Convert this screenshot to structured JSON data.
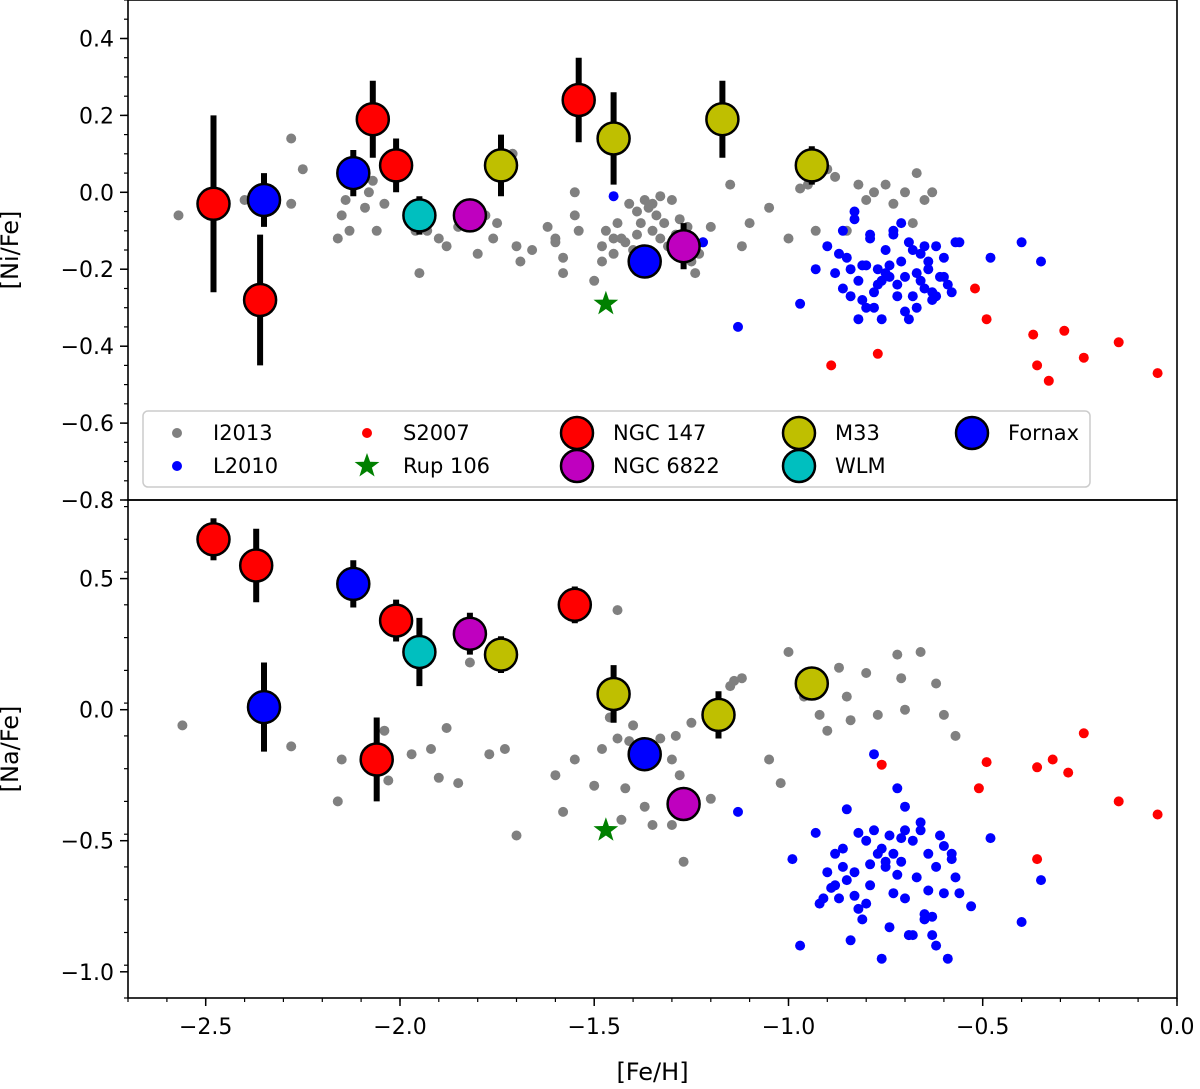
{
  "chart_data": [
    {
      "type": "scatter",
      "panel": "top",
      "xlabel": "",
      "ylabel": "[Ni/Fe]",
      "xlim": [
        -2.7,
        0.0
      ],
      "ylim": [
        -0.8,
        0.5
      ],
      "yticks": [
        0.4,
        0.2,
        0.0,
        -0.2,
        -0.4,
        -0.6,
        -0.8
      ],
      "ytick_labels": [
        "0.4",
        "0.2",
        "0.0",
        "−0.2",
        "−0.4",
        "−0.6",
        "−0.8"
      ],
      "legend": {
        "placement": "lower-center",
        "entries": [
          {
            "label": "I2013",
            "marker": "small-dot",
            "color": "#808080"
          },
          {
            "label": "L2010",
            "marker": "small-dot",
            "color": "#0000ff"
          },
          {
            "label": "S2007",
            "marker": "small-dot",
            "color": "#ff0000"
          },
          {
            "label": "Rup 106",
            "marker": "star",
            "color": "#008000"
          },
          {
            "label": "NGC 147",
            "marker": "large-circle",
            "color": "#ff0000"
          },
          {
            "label": "NGC 6822",
            "marker": "large-circle",
            "color": "#bf00bf"
          },
          {
            "label": "M33",
            "marker": "large-circle",
            "color": "#bfbf00"
          },
          {
            "label": "WLM",
            "marker": "large-circle",
            "color": "#00bfbf"
          },
          {
            "label": "Fornax",
            "marker": "large-circle",
            "color": "#0000ff"
          }
        ]
      },
      "series": [
        {
          "name": "I2013",
          "marker": "small-dot",
          "color": "#808080",
          "x": [
            -2.57,
            -2.4,
            -2.28,
            -2.25,
            -2.28,
            -2.16,
            -2.15,
            -2.14,
            -2.13,
            -2.09,
            -2.08,
            -2.07,
            -2.06,
            -2.04,
            -1.97,
            -1.96,
            -1.95,
            -1.93,
            -1.92,
            -1.9,
            -1.88,
            -1.85,
            -1.8,
            -1.78,
            -1.76,
            -1.75,
            -1.72,
            -1.71,
            -1.7,
            -1.69,
            -1.66,
            -1.6,
            -1.58,
            -1.55,
            -1.54,
            -1.5,
            -1.48,
            -1.47,
            -1.45,
            -1.44,
            -1.43,
            -1.42,
            -1.4,
            -1.39,
            -1.38,
            -1.37,
            -1.36,
            -1.35,
            -1.34,
            -1.33,
            -1.32,
            -1.31,
            -1.3,
            -1.29,
            -1.28,
            -1.27,
            -1.26,
            -1.25,
            -1.24,
            -1.23,
            -1.22,
            -1.15,
            -1.12,
            -1.1,
            -1.05,
            -1.0,
            -0.97,
            -0.95,
            -0.93,
            -0.9,
            -0.88,
            -0.85,
            -0.82,
            -0.8,
            -0.78,
            -0.75,
            -0.73,
            -0.7,
            -0.68,
            -0.67,
            -0.65,
            -0.63,
            -1.35,
            -1.33,
            -1.2,
            -1.55,
            -1.58,
            -1.6,
            -1.62,
            -1.48,
            -1.45,
            -1.41,
            -1.39
          ],
          "y": [
            -0.06,
            -0.02,
            0.14,
            0.06,
            -0.03,
            -0.12,
            -0.06,
            -0.02,
            -0.1,
            -0.04,
            0.0,
            0.03,
            -0.1,
            -0.03,
            -0.05,
            -0.1,
            -0.21,
            -0.1,
            -0.06,
            -0.12,
            -0.14,
            -0.09,
            -0.16,
            -0.06,
            -0.12,
            -0.08,
            0.09,
            0.1,
            -0.14,
            -0.18,
            -0.15,
            -0.13,
            -0.21,
            -0.06,
            -0.1,
            -0.23,
            -0.14,
            -0.1,
            -0.12,
            -0.08,
            -0.12,
            -0.13,
            -0.15,
            -0.05,
            -0.08,
            -0.02,
            -0.04,
            -0.1,
            -0.06,
            -0.12,
            -0.08,
            -0.14,
            -0.02,
            -0.11,
            -0.07,
            -0.11,
            -0.09,
            -0.18,
            -0.21,
            -0.16,
            -0.13,
            0.02,
            -0.14,
            -0.08,
            -0.04,
            -0.12,
            0.01,
            0.02,
            -0.1,
            0.06,
            0.04,
            -0.1,
            0.02,
            -0.02,
            0.0,
            0.02,
            -0.03,
            0.0,
            -0.08,
            0.05,
            -0.02,
            0.0,
            -0.03,
            -0.01,
            -0.09,
            0.0,
            -0.17,
            -0.12,
            -0.09,
            -0.18,
            -0.16,
            -0.03,
            -0.11
          ]
        },
        {
          "name": "L2010",
          "marker": "small-dot",
          "color": "#0000ff",
          "x": [
            -1.45,
            -1.22,
            -1.13,
            -0.97,
            -0.93,
            -0.9,
            -0.88,
            -0.86,
            -0.85,
            -0.84,
            -0.83,
            -0.82,
            -0.81,
            -0.8,
            -0.79,
            -0.78,
            -0.77,
            -0.76,
            -0.75,
            -0.74,
            -0.73,
            -0.72,
            -0.71,
            -0.7,
            -0.69,
            -0.68,
            -0.67,
            -0.66,
            -0.65,
            -0.64,
            -0.63,
            -0.62,
            -0.61,
            -0.6,
            -0.59,
            -0.58,
            -0.56,
            -0.48,
            -0.4,
            -0.35,
            -0.87,
            -0.84,
            -0.81,
            -0.79,
            -0.77,
            -0.74,
            -0.72,
            -0.7,
            -0.68,
            -0.66,
            -0.64,
            -0.62,
            -0.78,
            -0.71,
            -0.69,
            -0.86,
            -0.82,
            -0.8,
            -0.76,
            -0.73,
            -0.67,
            -0.63,
            -0.6,
            -0.57,
            -0.83,
            -0.75,
            -0.65
          ],
          "y": [
            -0.01,
            -0.13,
            -0.35,
            -0.29,
            -0.2,
            -0.14,
            -0.21,
            -0.25,
            -0.17,
            -0.27,
            -0.05,
            -0.23,
            -0.19,
            -0.3,
            -0.12,
            -0.26,
            -0.2,
            -0.33,
            -0.15,
            -0.22,
            -0.1,
            -0.24,
            -0.18,
            -0.31,
            -0.13,
            -0.27,
            -0.21,
            -0.16,
            -0.25,
            -0.2,
            -0.28,
            -0.14,
            -0.22,
            -0.17,
            -0.24,
            -0.26,
            -0.13,
            -0.17,
            -0.13,
            -0.18,
            -0.16,
            -0.2,
            -0.28,
            -0.11,
            -0.24,
            -0.19,
            -0.27,
            -0.22,
            -0.15,
            -0.23,
            -0.18,
            -0.27,
            -0.3,
            -0.08,
            -0.33,
            -0.1,
            -0.33,
            -0.19,
            -0.23,
            -0.11,
            -0.3,
            -0.26,
            -0.22,
            -0.13,
            -0.07,
            -0.21,
            -0.14
          ]
        },
        {
          "name": "S2007",
          "marker": "small-dot",
          "color": "#ff0000",
          "x": [
            -0.89,
            -0.77,
            -0.52,
            -0.49,
            -0.37,
            -0.36,
            -0.33,
            -0.29,
            -0.24,
            -0.15,
            -0.05
          ],
          "y": [
            -0.45,
            -0.42,
            -0.25,
            -0.33,
            -0.37,
            -0.45,
            -0.49,
            -0.36,
            -0.43,
            -0.39,
            -0.47
          ]
        },
        {
          "name": "Rup 106",
          "marker": "star",
          "color": "#008000",
          "x": [
            -1.47
          ],
          "y": [
            -0.29
          ]
        },
        {
          "name": "NGC 147",
          "marker": "large-circle",
          "color": "#ff0000",
          "x": [
            -2.48,
            -2.36,
            -2.07,
            -2.01,
            -1.54
          ],
          "y": [
            -0.03,
            -0.28,
            0.19,
            0.07,
            0.24
          ],
          "err": [
            0.23,
            0.17,
            0.1,
            0.07,
            0.11
          ]
        },
        {
          "name": "NGC 6822",
          "marker": "large-circle",
          "color": "#bf00bf",
          "x": [
            -1.82,
            -1.27
          ],
          "y": [
            -0.06,
            -0.14
          ],
          "err": [
            0.04,
            0.06
          ]
        },
        {
          "name": "M33",
          "marker": "large-circle",
          "color": "#bfbf00",
          "x": [
            -1.74,
            -1.45,
            -1.17,
            -0.94
          ],
          "y": [
            0.07,
            0.14,
            0.19,
            0.07
          ],
          "err": [
            0.08,
            0.12,
            0.1,
            0.05
          ]
        },
        {
          "name": "WLM",
          "marker": "large-circle",
          "color": "#00bfbf",
          "x": [
            -1.95
          ],
          "y": [
            -0.06
          ],
          "err": [
            0.05
          ]
        },
        {
          "name": "Fornax",
          "marker": "large-circle",
          "color": "#0000ff",
          "x": [
            -2.35,
            -2.12,
            -1.37
          ],
          "y": [
            -0.02,
            0.05,
            -0.18
          ],
          "err": [
            0.07,
            0.06,
            0.03
          ]
        }
      ]
    },
    {
      "type": "scatter",
      "panel": "bottom",
      "xlabel": "[Fe/H]",
      "ylabel": "[Na/Fe]",
      "xlim": [
        -2.7,
        0.0
      ],
      "ylim": [
        -1.1,
        0.8
      ],
      "yticks": [
        0.5,
        0.0,
        -0.5,
        -1.0
      ],
      "ytick_labels": [
        "0.5",
        "0.0",
        "−0.5",
        "−1.0"
      ],
      "xticks": [
        -2.5,
        -2.0,
        -1.5,
        -1.0,
        -0.5,
        0.0
      ],
      "xtick_labels": [
        "−2.5",
        "−2.0",
        "−1.5",
        "−1.0",
        "−0.5",
        "0.0"
      ],
      "series": [
        {
          "name": "I2013",
          "marker": "small-dot",
          "color": "#808080",
          "x": [
            -2.56,
            -2.28,
            -2.16,
            -2.15,
            -2.04,
            -2.03,
            -1.97,
            -1.92,
            -1.9,
            -1.88,
            -1.85,
            -1.82,
            -1.77,
            -1.73,
            -1.7,
            -1.6,
            -1.58,
            -1.55,
            -1.5,
            -1.48,
            -1.46,
            -1.44,
            -1.43,
            -1.42,
            -1.4,
            -1.38,
            -1.37,
            -1.35,
            -1.33,
            -1.3,
            -1.29,
            -1.28,
            -1.27,
            -1.25,
            -1.2,
            -1.15,
            -1.12,
            -1.05,
            -1.02,
            -1.0,
            -0.95,
            -0.9,
            -0.87,
            -0.84,
            -0.8,
            -0.72,
            -0.7,
            -0.66,
            -0.62,
            -0.6,
            -0.57,
            -1.41,
            -1.44,
            -1.14,
            -0.96,
            -0.92,
            -0.85,
            -0.77,
            -1.3,
            -0.71
          ],
          "y": [
            -0.06,
            -0.14,
            -0.35,
            -0.19,
            -0.08,
            -0.27,
            -0.17,
            -0.15,
            -0.26,
            -0.07,
            -0.28,
            0.18,
            -0.17,
            -0.15,
            -0.48,
            -0.25,
            -0.39,
            -0.19,
            -0.29,
            -0.15,
            -0.03,
            0.38,
            -0.42,
            -0.3,
            -0.06,
            -0.13,
            -0.37,
            -0.44,
            -0.11,
            -0.19,
            -0.1,
            -0.25,
            -0.58,
            -0.05,
            -0.34,
            0.09,
            0.12,
            -0.19,
            -0.28,
            0.22,
            0.1,
            -0.08,
            0.16,
            -0.04,
            0.14,
            0.21,
            0.0,
            0.22,
            0.1,
            -0.02,
            -0.1,
            -0.12,
            -0.11,
            0.11,
            0.05,
            -0.02,
            0.05,
            -0.02,
            -0.44,
            0.12
          ]
        },
        {
          "name": "L2010",
          "marker": "small-dot",
          "color": "#0000ff",
          "x": [
            -1.13,
            -0.99,
            -0.97,
            -0.93,
            -0.91,
            -0.9,
            -0.89,
            -0.88,
            -0.87,
            -0.86,
            -0.85,
            -0.84,
            -0.83,
            -0.82,
            -0.81,
            -0.8,
            -0.79,
            -0.78,
            -0.77,
            -0.76,
            -0.75,
            -0.74,
            -0.73,
            -0.72,
            -0.71,
            -0.7,
            -0.69,
            -0.68,
            -0.67,
            -0.66,
            -0.65,
            -0.64,
            -0.63,
            -0.62,
            -0.61,
            -0.6,
            -0.59,
            -0.58,
            -0.57,
            -0.56,
            -0.53,
            -0.48,
            -0.4,
            -0.35,
            -0.8,
            -0.75,
            -0.7,
            -0.65,
            -0.6,
            -0.85,
            -0.78,
            -0.72,
            -0.68,
            -0.62,
            -0.88,
            -0.82,
            -0.76,
            -0.7,
            -0.64,
            -0.58,
            -0.92,
            -0.86,
            -0.74,
            -0.66,
            -0.69,
            -0.79,
            -0.83,
            -0.73,
            -0.63,
            -0.71
          ],
          "y": [
            -0.39,
            -0.57,
            -0.9,
            -0.47,
            -0.72,
            -0.62,
            -0.68,
            -0.55,
            -0.72,
            -0.53,
            -0.38,
            -0.88,
            -0.62,
            -0.47,
            -0.8,
            -0.5,
            -0.67,
            -0.17,
            -0.55,
            -0.95,
            -0.6,
            -0.48,
            -0.7,
            -0.3,
            -0.58,
            -0.37,
            -0.86,
            -0.5,
            -0.64,
            -0.43,
            -0.78,
            -0.55,
            -0.86,
            -0.6,
            -0.48,
            -0.7,
            -0.95,
            -0.57,
            -0.64,
            -0.7,
            -0.75,
            -0.49,
            -0.81,
            -0.65,
            -0.74,
            -0.58,
            -0.72,
            -0.8,
            -0.52,
            -0.65,
            -0.46,
            -0.63,
            -0.86,
            -0.9,
            -0.67,
            -0.76,
            -0.53,
            -0.46,
            -0.69,
            -0.55,
            -0.74,
            -0.6,
            -0.83,
            -0.46,
            -0.86,
            -0.59,
            -0.71,
            -0.55,
            -0.79,
            -0.49
          ]
        },
        {
          "name": "S2007",
          "marker": "small-dot",
          "color": "#ff0000",
          "x": [
            -0.76,
            -0.51,
            -0.49,
            -0.36,
            -0.36,
            -0.32,
            -0.28,
            -0.24,
            -0.15,
            -0.05
          ],
          "y": [
            -0.21,
            -0.3,
            -0.2,
            -0.57,
            -0.22,
            -0.19,
            -0.24,
            -0.09,
            -0.35,
            -0.4
          ]
        },
        {
          "name": "Rup 106",
          "marker": "star",
          "color": "#008000",
          "x": [
            -1.47
          ],
          "y": [
            -0.46
          ]
        },
        {
          "name": "NGC 147",
          "marker": "large-circle",
          "color": "#ff0000",
          "x": [
            -2.48,
            -2.37,
            -2.06,
            -2.01,
            -1.55
          ],
          "y": [
            0.65,
            0.55,
            -0.19,
            0.34,
            0.4
          ],
          "err": [
            0.08,
            0.14,
            0.16,
            0.08,
            0.07
          ]
        },
        {
          "name": "NGC 6822",
          "marker": "large-circle",
          "color": "#bf00bf",
          "x": [
            -1.82,
            -1.27
          ],
          "y": [
            0.29,
            -0.36
          ],
          "err": [
            0.08,
            0.04
          ]
        },
        {
          "name": "M33",
          "marker": "large-circle",
          "color": "#bfbf00",
          "x": [
            -1.74,
            -1.45,
            -1.18,
            -0.94
          ],
          "y": [
            0.21,
            0.06,
            -0.02,
            0.1
          ],
          "err": [
            0.07,
            0.11,
            0.09,
            0.04
          ]
        },
        {
          "name": "WLM",
          "marker": "large-circle",
          "color": "#00bfbf",
          "x": [
            -1.95
          ],
          "y": [
            0.22
          ],
          "err": [
            0.13
          ]
        },
        {
          "name": "Fornax",
          "marker": "large-circle",
          "color": "#0000ff",
          "x": [
            -2.35,
            -2.12,
            -1.37
          ],
          "y": [
            0.01,
            0.48,
            -0.17
          ],
          "err": [
            0.17,
            0.09,
            0.04
          ]
        }
      ]
    }
  ]
}
